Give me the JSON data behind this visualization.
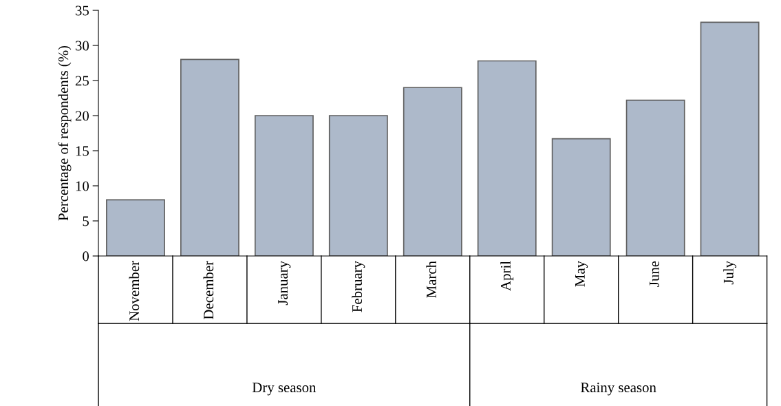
{
  "chart_data": {
    "type": "bar",
    "ylabel": "Percentage of respondents (%)",
    "categories": [
      "November",
      "December",
      "January",
      "February",
      "March",
      "April",
      "May",
      "June",
      "July"
    ],
    "values": [
      8,
      28,
      20,
      20,
      24,
      27.8,
      16.7,
      22.2,
      33.3
    ],
    "color": "#adb9ca",
    "ylim": [
      0,
      35
    ],
    "yticks": [
      0,
      5,
      10,
      15,
      20,
      25,
      30,
      35
    ],
    "grid": false,
    "annotations": [
      "Dry season",
      "Rainy season"
    ]
  }
}
